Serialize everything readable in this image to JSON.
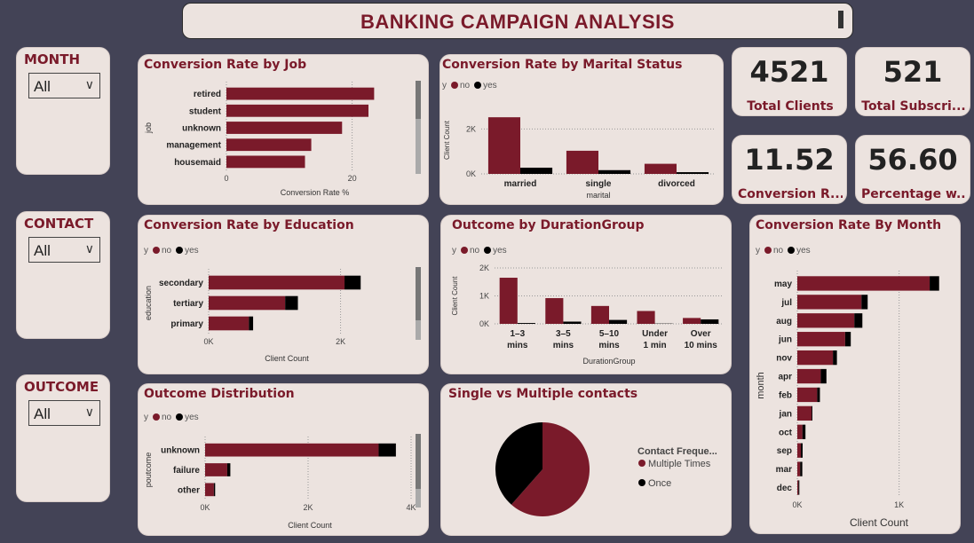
{
  "header": {
    "title": "BANKING CAMPAIGN ANALYSIS"
  },
  "colors": {
    "no": "#7a1a2a",
    "yes": "#000000",
    "accent": "#7a1a2a",
    "background": "#434356",
    "panel": "#ece3df"
  },
  "slicers": [
    {
      "label": "MONTH",
      "value": "All"
    },
    {
      "label": "CONTACT",
      "value": "All"
    },
    {
      "label": "OUTCOME",
      "value": "All"
    }
  ],
  "kpis": [
    {
      "value": "4521",
      "label": "Total Clients"
    },
    {
      "value": "521",
      "label": "Total Subscri..."
    },
    {
      "value": "11.52",
      "label": "Conversion R..."
    },
    {
      "value": "56.60",
      "label": "Percentage w..."
    }
  ],
  "legend": {
    "field": "y",
    "no": "no",
    "yes": "yes"
  },
  "chart_data": [
    {
      "id": "job",
      "type": "bar",
      "title": "Conversion Rate by Job",
      "xlabel": "Conversion Rate %",
      "ylabel": "job",
      "categories": [
        "retired",
        "student",
        "unknown",
        "management",
        "housemaid"
      ],
      "values": [
        23.5,
        22.6,
        18.4,
        13.5,
        12.5
      ],
      "xlim": [
        0,
        25
      ],
      "ticks": [
        "0",
        "20"
      ],
      "tick_values": [
        0,
        20
      ]
    },
    {
      "id": "marital",
      "type": "bar",
      "title": "Conversion Rate by Marital Status",
      "xlabel": "marital",
      "ylabel": "Client Count",
      "categories": [
        "married",
        "single",
        "divorced"
      ],
      "series": [
        {
          "name": "no",
          "values": [
            2520,
            1030,
            450
          ]
        },
        {
          "name": "yes",
          "values": [
            277,
            167,
            77
          ]
        }
      ],
      "ylim": [
        0,
        3000
      ],
      "ticks": [
        "0K",
        "2K"
      ],
      "tick_values": [
        0,
        2000
      ]
    },
    {
      "id": "education",
      "type": "bar",
      "title": "Conversion Rate by Education",
      "xlabel": "Client Count",
      "ylabel": "education",
      "categories": [
        "secondary",
        "tertiary",
        "primary"
      ],
      "series": [
        {
          "name": "no",
          "values": [
            2060,
            1160,
            610
          ]
        },
        {
          "name": "yes",
          "values": [
            245,
            193,
            64
          ]
        }
      ],
      "xlim": [
        0,
        2800
      ],
      "ticks": [
        "0K",
        "2K"
      ],
      "tick_values": [
        0,
        2000
      ]
    },
    {
      "id": "duration",
      "type": "bar",
      "title": "Outcome by DurationGroup",
      "xlabel": "DurationGroup",
      "ylabel": "Client Count",
      "categories": [
        "1–3 mins",
        "3–5 mins",
        "5–10 mins",
        "Under 1 min",
        "Over 10 mins"
      ],
      "series": [
        {
          "name": "no",
          "values": [
            1650,
            920,
            640,
            460,
            210
          ]
        },
        {
          "name": "yes",
          "values": [
            30,
            80,
            140,
            10,
            160
          ]
        }
      ],
      "ylim": [
        0,
        2000
      ],
      "ticks": [
        "0K",
        "1K",
        "2K"
      ],
      "tick_values": [
        0,
        1000,
        2000
      ]
    },
    {
      "id": "month",
      "type": "bar",
      "title": "Conversion Rate By Month",
      "xlabel": "Client Count",
      "ylabel": "month",
      "categories": [
        "may",
        "jul",
        "aug",
        "jun",
        "nov",
        "apr",
        "feb",
        "jan",
        "oct",
        "sep",
        "mar",
        "dec"
      ],
      "series": [
        {
          "name": "no",
          "values": [
            1300,
            630,
            560,
            470,
            350,
            230,
            195,
            140,
            50,
            35,
            28,
            11
          ]
        },
        {
          "name": "yes",
          "values": [
            93,
            61,
            79,
            55,
            39,
            56,
            27,
            8,
            30,
            17,
            21,
            9
          ]
        }
      ],
      "xlim": [
        0,
        1500
      ],
      "ticks": [
        "0K",
        "1K"
      ],
      "tick_values": [
        0,
        1000
      ]
    },
    {
      "id": "poutcome",
      "type": "bar",
      "title": "Outcome Distribution",
      "xlabel": "Client Count",
      "ylabel": "poutcome",
      "categories": [
        "unknown",
        "failure",
        "other"
      ],
      "series": [
        {
          "name": "no",
          "values": [
            3370,
            430,
            170
          ]
        },
        {
          "name": "yes",
          "values": [
            335,
            60,
            25
          ]
        }
      ],
      "xlim": [
        0,
        4000
      ],
      "ticks": [
        "0K",
        "2K",
        "4K"
      ],
      "tick_values": [
        0,
        2000,
        4000
      ]
    },
    {
      "id": "contact",
      "type": "pie",
      "title": "Single vs Multiple contacts",
      "legend_title": "Contact Freque...",
      "categories": [
        "Multiple Times",
        "Once"
      ],
      "values": [
        61.5,
        38.5
      ]
    }
  ]
}
